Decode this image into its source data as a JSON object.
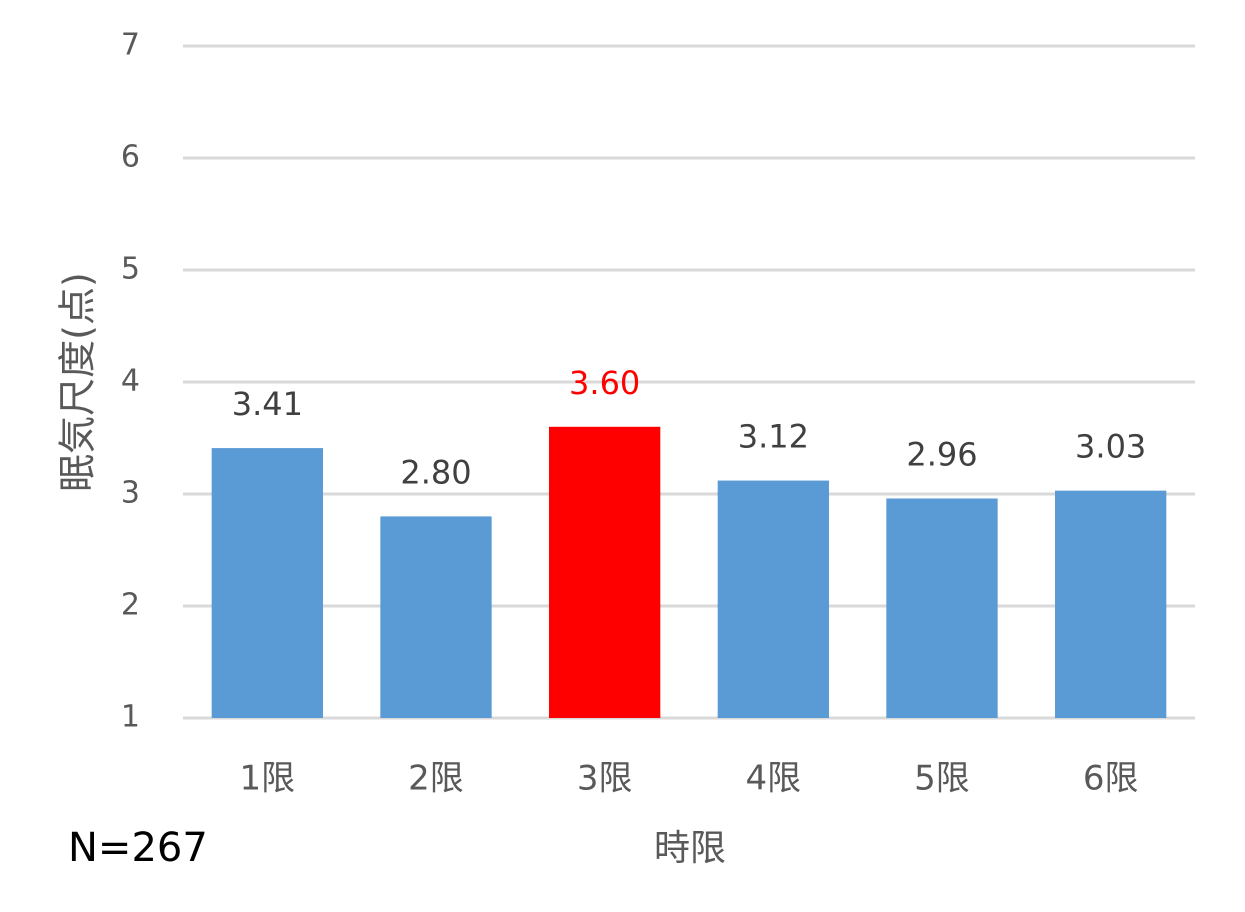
{
  "chart_data": {
    "type": "bar",
    "categories": [
      "1限",
      "2限",
      "3限",
      "4限",
      "5限",
      "6限"
    ],
    "values": [
      3.41,
      2.8,
      3.6,
      3.12,
      2.96,
      3.03
    ],
    "value_labels": [
      "3.41",
      "2.80",
      "3.60",
      "3.12",
      "2.96",
      "3.03"
    ],
    "colors": [
      "#5b9bd5",
      "#5b9bd5",
      "#ff0000",
      "#5b9bd5",
      "#5b9bd5",
      "#5b9bd5"
    ],
    "value_label_colors": [
      "#404040",
      "#404040",
      "#ff0000",
      "#404040",
      "#404040",
      "#404040"
    ],
    "x_label": "時限",
    "y_label": "眠気尺度(点)",
    "annotation": "N=267",
    "ylim": [
      1,
      7
    ],
    "yticks": [
      1,
      2,
      3,
      4,
      5,
      6,
      7
    ],
    "grid": true
  }
}
